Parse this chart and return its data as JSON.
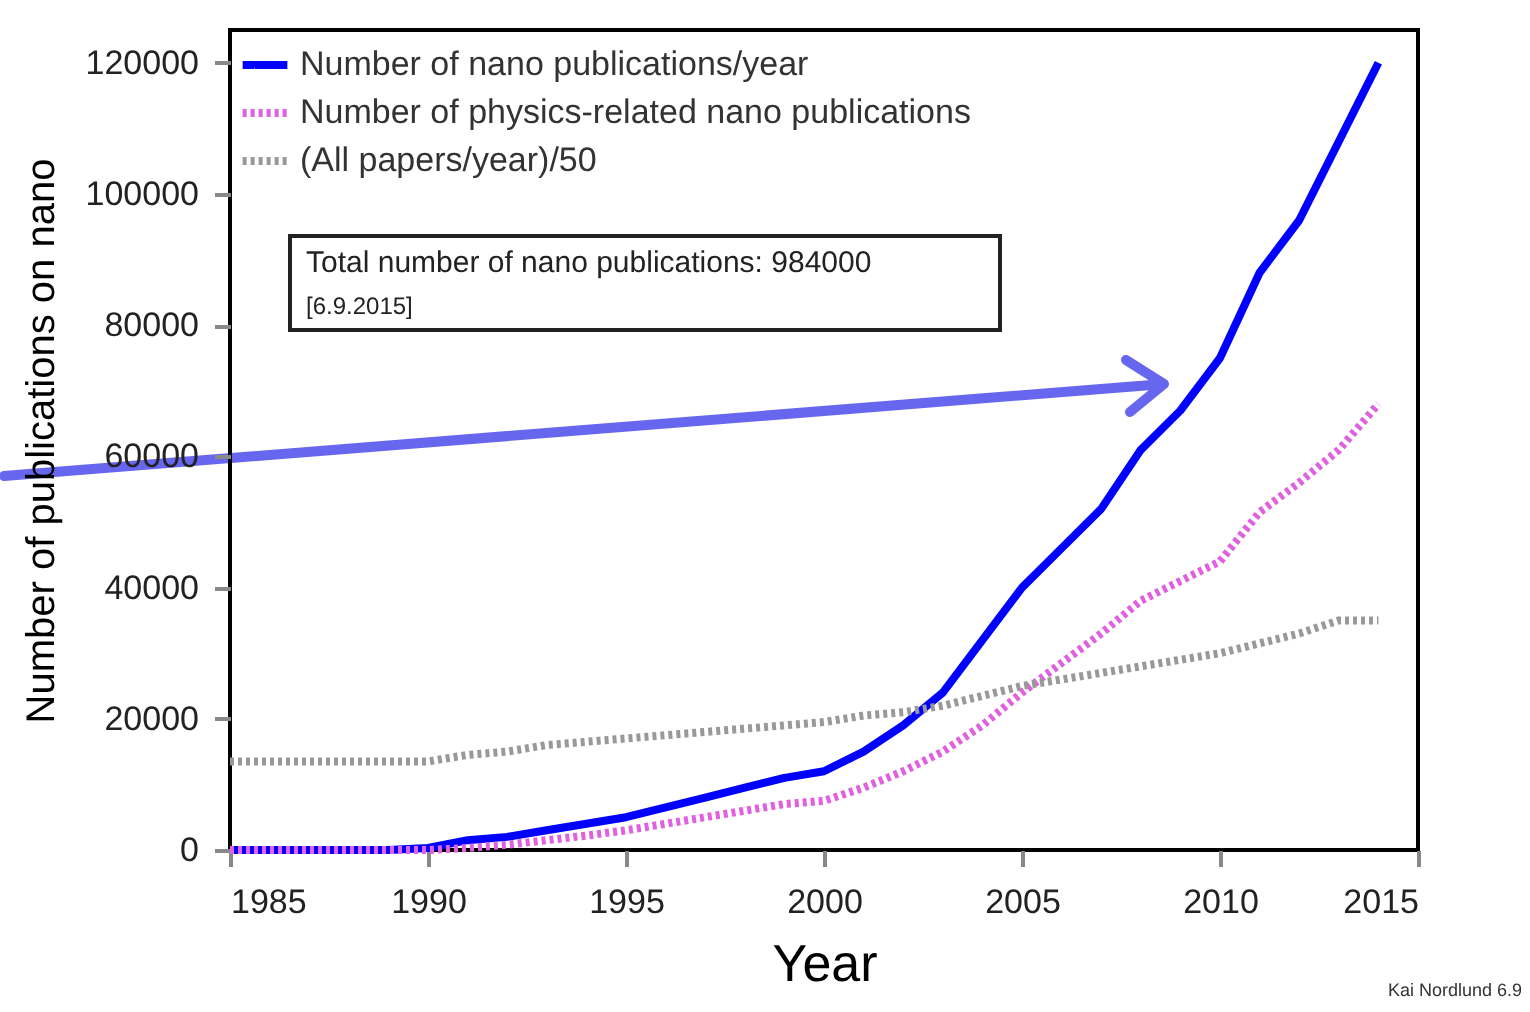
{
  "chart_data": {
    "type": "line",
    "xlabel": "Year",
    "ylabel": "Number of publications on nano",
    "x": [
      1985,
      1986,
      1987,
      1988,
      1989,
      1990,
      1991,
      1992,
      1993,
      1994,
      1995,
      1996,
      1997,
      1998,
      1999,
      2000,
      2001,
      2002,
      2003,
      2004,
      2005,
      2006,
      2007,
      2008,
      2009,
      2010,
      2011,
      2012,
      2013,
      2014
    ],
    "series": [
      {
        "name": "Number of nano publications/year",
        "color": "#0000ff",
        "line_style": "solid",
        "values": [
          0,
          0,
          0,
          0,
          0,
          300,
          1500,
          2000,
          3000,
          4000,
          5000,
          6500,
          8000,
          9500,
          11000,
          12000,
          15000,
          19000,
          24000,
          32000,
          40000,
          46000,
          52000,
          61000,
          67000,
          75000,
          88000,
          96000,
          108000,
          120000
        ]
      },
      {
        "name": "Number of physics-related nano publications",
        "color": "#e060e0",
        "line_style": "dotted",
        "values": [
          0,
          0,
          0,
          0,
          0,
          0,
          300,
          800,
          1500,
          2200,
          3000,
          4000,
          5000,
          6000,
          7000,
          7500,
          9500,
          12000,
          15000,
          19000,
          24000,
          28500,
          33000,
          38000,
          41000,
          44000,
          51500,
          56000,
          61000,
          68000
        ]
      },
      {
        "name": "(All papers/year)/50",
        "color": "#999999",
        "line_style": "dotted",
        "values": [
          13500,
          13500,
          13500,
          13500,
          13500,
          13500,
          14500,
          15000,
          16000,
          16500,
          17000,
          17500,
          18000,
          18500,
          19000,
          19500,
          20500,
          21000,
          22000,
          23500,
          25000,
          26000,
          27000,
          28000,
          29000,
          30000,
          31500,
          33000,
          35000,
          35000
        ]
      }
    ],
    "xlim": [
      1985,
      2015
    ],
    "xticks": [
      1985,
      1990,
      1995,
      2000,
      2005,
      2010,
      2015
    ],
    "ylim": [
      0,
      125000
    ],
    "yticks": [
      0,
      20000,
      40000,
      60000,
      80000,
      100000,
      120000
    ],
    "grid": false,
    "legend": "top left",
    "annotations": [
      "Total number of nano publications: 984000",
      "[6.9.2015]",
      "Kai Nordlund 6.9"
    ]
  }
}
